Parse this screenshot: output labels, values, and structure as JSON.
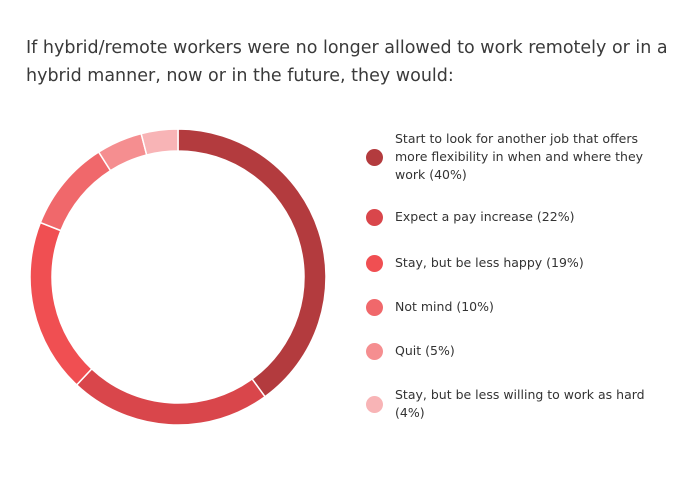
{
  "title": "If hybrid/remote workers were no longer allowed to work remotely or in a hybrid manner, now or in the future, they would:",
  "chart_data": {
    "type": "pie",
    "donut": true,
    "categories": [
      "Start to look for another job that offers more flexibility in when and where they work (40%)",
      "Expect a pay increase (22%)",
      "Stay, but be less happy (19%)",
      "Not mind (10%)",
      "Quit (5%)",
      "Stay, but be less willing to work as hard (4%)"
    ],
    "values": [
      40,
      22,
      19,
      10,
      5,
      4
    ],
    "colors": [
      "#b33b3e",
      "#d9464b",
      "#f04f52",
      "#f0686b",
      "#f58e90",
      "#f8b4b6"
    ],
    "legend_position": "right"
  }
}
